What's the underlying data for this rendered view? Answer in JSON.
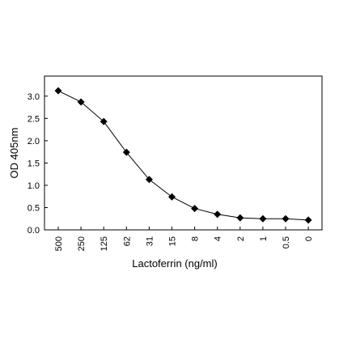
{
  "chart_data": {
    "type": "line",
    "title": "",
    "xlabel": "Lactoferrin (ng/ml)",
    "ylabel": "OD 405nm",
    "categories": [
      "500",
      "250",
      "125",
      "62",
      "31",
      "15",
      "8",
      "4",
      "2",
      "1",
      "0.5",
      "0"
    ],
    "series": [
      {
        "values": [
          3.12,
          2.87,
          2.43,
          1.74,
          1.13,
          0.74,
          0.48,
          0.35,
          0.27,
          0.25,
          0.25,
          0.22
        ],
        "marker": "diamond"
      }
    ],
    "yticks": [
      "0.0",
      "0.5",
      "1.0",
      "1.5",
      "2.0",
      "2.5",
      "3.0"
    ],
    "ylim": [
      0,
      3.45
    ],
    "grid": false,
    "legend": "none",
    "colors": {
      "line": "#000000",
      "marker": "#000000",
      "axis": "#000000",
      "background": "#ffffff"
    }
  }
}
